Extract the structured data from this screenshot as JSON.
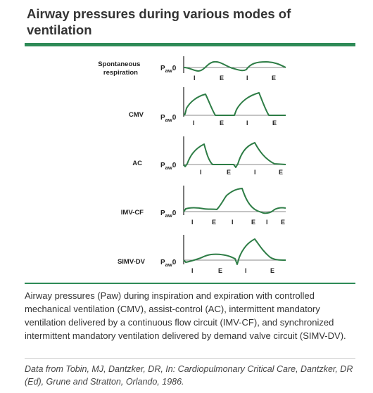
{
  "title": "Airway pressures during various modes of ventilation",
  "panels": [
    {
      "mode": "Spontaneous respiration",
      "paw_main": "P",
      "paw_sub": "aw",
      "paw_zero": "0",
      "phases": [
        "I",
        "E",
        "I",
        "E"
      ]
    },
    {
      "mode": "CMV",
      "paw_main": "P",
      "paw_sub": "aw",
      "paw_zero": "0",
      "phases": [
        "I",
        "E",
        "I",
        "E"
      ]
    },
    {
      "mode": "AC",
      "paw_main": "P",
      "paw_sub": "aw",
      "paw_zero": "0",
      "phases": [
        "I",
        "E",
        "I",
        "E"
      ]
    },
    {
      "mode": "IMV-CF",
      "paw_main": "P",
      "paw_sub": "aw",
      "paw_zero": "0",
      "phases": [
        "I",
        "E",
        "I",
        "E",
        "I",
        "E"
      ]
    },
    {
      "mode": "SIMV-DV",
      "paw_main": "P",
      "paw_sub": "aw",
      "paw_zero": "0",
      "phases": [
        "I",
        "E",
        "I",
        "E"
      ]
    }
  ],
  "caption": "Airway pressures (Paw) during inspiration and expiration with controlled mechanical ventilation (CMV), assist-control (AC), intermittent mandatory ventilation delivered by a continuous flow circuit (IMV-CF), and synchronized intermittent mandatory ventilation delivered by demand valve circuit (SIMV-DV).",
  "source": "Data from Tobin, MJ, Dantzker, DR, In: Cardiopulmonary Critical Care, Dantzker, DR (Ed), Grune and Stratton, Orlando, 1986.",
  "colors": {
    "accent": "#2e8b57",
    "curve": "#2e7d46"
  }
}
